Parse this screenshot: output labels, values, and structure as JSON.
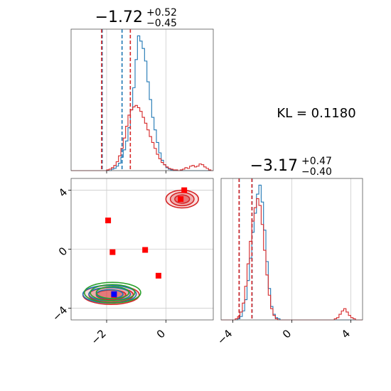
{
  "kl_label": "KL = 0.1180",
  "colors": {
    "blue": "#1f77b4",
    "red": "#d62728",
    "green": "#2ca02c",
    "marker_red": "#ff0000",
    "marker_blue": "#0000ff",
    "grid": "#cccccc",
    "frame": "#555555"
  },
  "chart_data": [
    {
      "type": "histogram",
      "panel": "top-left",
      "title_value": "−1.72",
      "title_sup": "+0.52",
      "title_sub": "−0.45",
      "xlim": [
        -3.2,
        1.6
      ],
      "grid": true,
      "series": [
        {
          "color": "#1f77b4",
          "bins_x0": -3.2,
          "bin_width": 0.08,
          "counts": [
            0,
            0,
            0,
            0,
            0,
            0,
            0,
            0,
            0,
            0,
            0,
            0,
            0,
            0,
            0,
            0,
            0,
            2,
            3,
            6,
            10,
            18,
            28,
            40,
            58,
            82,
            112,
            150,
            182,
            175,
            165,
            148,
            120,
            96,
            72,
            55,
            38,
            24,
            14,
            8,
            4,
            2,
            1,
            0,
            0,
            0,
            0,
            0,
            0,
            0,
            0,
            0,
            0,
            0,
            0,
            0,
            0,
            0,
            0,
            0
          ]
        },
        {
          "color": "#d62728",
          "bins_x0": -3.2,
          "bin_width": 0.08,
          "counts": [
            0,
            0,
            0,
            0,
            0,
            0,
            0,
            0,
            0,
            0,
            0,
            0,
            0,
            0,
            0,
            1,
            2,
            4,
            7,
            12,
            20,
            30,
            44,
            60,
            75,
            82,
            86,
            88,
            85,
            80,
            72,
            64,
            55,
            46,
            38,
            30,
            22,
            16,
            11,
            8,
            5,
            3,
            2,
            1,
            1,
            0,
            1,
            2,
            4,
            3,
            6,
            7,
            5,
            6,
            9,
            8,
            5,
            3,
            1,
            0
          ]
        }
      ],
      "quantile_lines": [
        {
          "x": -2.15,
          "color": "#1f77b4"
        },
        {
          "x": -1.48,
          "color": "#1f77b4"
        },
        {
          "x": -2.17,
          "color": "#d62728"
        },
        {
          "x": -1.2,
          "color": "#d62728"
        }
      ],
      "ticks": []
    },
    {
      "type": "scatter",
      "panel": "bottom-left",
      "xlim": [
        -3.2,
        1.6
      ],
      "ylim": [
        -4.8,
        4.8
      ],
      "grid": true,
      "xticks": [
        {
          "value": -2,
          "label": "−2"
        },
        {
          "value": 0,
          "label": "0"
        }
      ],
      "yticks": [
        {
          "value": -4,
          "label": "−4"
        },
        {
          "value": 0,
          "label": "0"
        },
        {
          "value": 4,
          "label": "4"
        }
      ],
      "contours": [
        {
          "color": "#d62728",
          "cx": -1.85,
          "cy": -3.1,
          "rx": [
            0.95,
            0.75,
            0.5
          ],
          "ry": [
            0.65,
            0.5,
            0.33
          ],
          "fill": true
        },
        {
          "color": "#1f77b4",
          "cx": -1.9,
          "cy": -3.05,
          "rx": [
            0.9,
            0.7,
            0.45
          ],
          "ry": [
            0.6,
            0.45,
            0.3
          ],
          "fill": false
        },
        {
          "color": "#2ca02c",
          "cx": -1.8,
          "cy": -2.95,
          "rx": [
            0.95,
            0.75,
            0.55
          ],
          "ry": [
            0.7,
            0.55,
            0.4
          ],
          "fill": false
        },
        {
          "color": "#d62728",
          "cx": 0.55,
          "cy": 3.4,
          "rx": [
            0.55,
            0.4,
            0.25
          ],
          "ry": [
            0.6,
            0.45,
            0.28
          ],
          "fill": true
        }
      ],
      "points_red": [
        {
          "x": 0.62,
          "y": 4.0
        },
        {
          "x": 0.5,
          "y": 3.4
        },
        {
          "x": -1.95,
          "y": 1.95
        },
        {
          "x": -1.8,
          "y": -0.2
        },
        {
          "x": -0.7,
          "y": -0.05
        },
        {
          "x": -0.25,
          "y": -1.8
        },
        {
          "x": -1.75,
          "y": -3.1
        }
      ],
      "points_blue": [
        {
          "x": -1.75,
          "y": -3.05
        }
      ]
    },
    {
      "type": "histogram",
      "panel": "bottom-right",
      "title_value": "−3.17",
      "title_sup": "+0.47",
      "title_sub": "−0.40",
      "xlim": [
        -4.8,
        4.8
      ],
      "grid": true,
      "series": [
        {
          "color": "#1f77b4",
          "bins_x0": -4.8,
          "bin_width": 0.16,
          "counts": [
            0,
            0,
            0,
            0,
            0,
            0,
            0,
            1,
            3,
            8,
            18,
            35,
            55,
            78,
            95,
            112,
            120,
            105,
            80,
            52,
            28,
            12,
            5,
            2,
            1,
            0,
            0,
            0,
            0,
            0,
            0,
            0,
            0,
            0,
            0,
            0,
            0,
            0,
            0,
            0,
            0,
            0,
            0,
            0,
            0,
            0,
            0,
            0,
            0,
            0,
            0,
            0,
            0,
            0,
            0,
            0,
            0,
            0,
            0,
            0
          ]
        },
        {
          "color": "#d62728",
          "bins_x0": -4.8,
          "bin_width": 0.16,
          "counts": [
            0,
            0,
            0,
            0,
            0,
            0,
            1,
            3,
            7,
            15,
            30,
            50,
            70,
            88,
            100,
            108,
            102,
            85,
            62,
            40,
            22,
            10,
            4,
            1,
            0,
            0,
            0,
            0,
            0,
            0,
            0,
            0,
            0,
            0,
            0,
            0,
            0,
            0,
            0,
            0,
            0,
            0,
            0,
            0,
            0,
            0,
            0,
            0,
            1,
            2,
            5,
            8,
            10,
            7,
            4,
            2,
            1,
            0,
            0,
            0
          ]
        }
      ],
      "quantile_lines": [
        {
          "x": -3.57,
          "color": "#1f77b4"
        },
        {
          "x": -2.7,
          "color": "#1f77b4"
        },
        {
          "x": -3.58,
          "color": "#d62728"
        },
        {
          "x": -2.71,
          "color": "#d62728"
        }
      ],
      "xticks": [
        {
          "value": -4,
          "label": "−4"
        },
        {
          "value": 0,
          "label": "0"
        },
        {
          "value": 4,
          "label": "4"
        }
      ]
    }
  ]
}
